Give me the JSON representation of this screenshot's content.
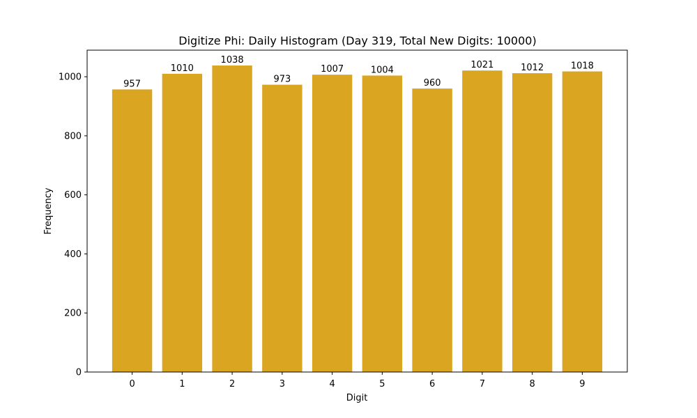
{
  "chart_data": {
    "type": "bar",
    "title": "Digitize Phi: Daily Histogram (Day 319, Total New Digits: 10000)",
    "xlabel": "Digit",
    "ylabel": "Frequency",
    "categories": [
      "0",
      "1",
      "2",
      "3",
      "4",
      "5",
      "6",
      "7",
      "8",
      "9"
    ],
    "values": [
      957,
      1010,
      1038,
      973,
      1007,
      1004,
      960,
      1021,
      1012,
      1018
    ],
    "data_labels": [
      "957",
      "1010",
      "1038",
      "973",
      "1007",
      "1004",
      "960",
      "1021",
      "1012",
      "1018"
    ],
    "yticks": [
      0,
      200,
      400,
      600,
      800,
      1000
    ],
    "ytick_labels": [
      "0",
      "200",
      "400",
      "600",
      "800",
      "1000"
    ],
    "ylim": [
      0,
      1090
    ],
    "grid": false,
    "bar_color": "#DAA520"
  }
}
